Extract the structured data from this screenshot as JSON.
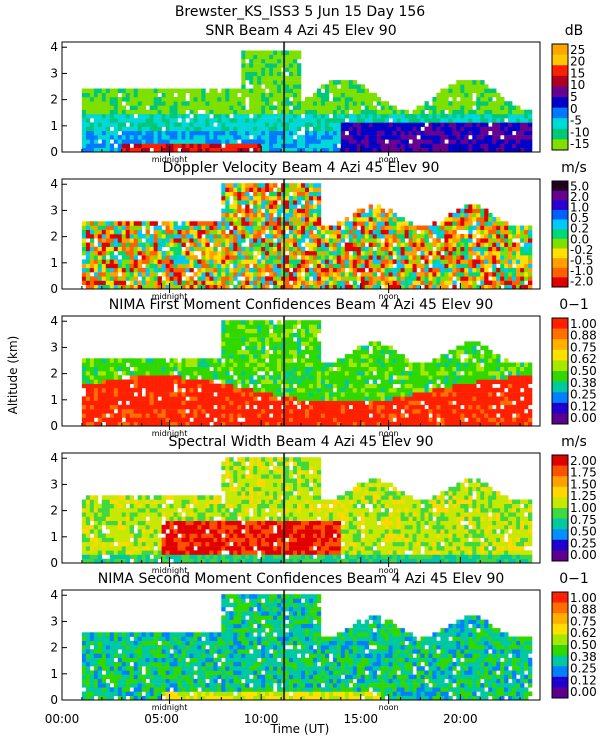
{
  "figure": {
    "title": "Brewster_KS_ISS3   5 Jun 15 Day 156",
    "ylabel": "Altitude (km)",
    "xlabel": "Time (UT)",
    "xticklabels": [
      "00:00",
      "05:00",
      "10:00",
      "15:00",
      "20:00"
    ],
    "midnight_label": "midnight",
    "noon_label": "noon"
  },
  "chart_data": [
    {
      "type": "heatmap",
      "title": "SNR Beam 4 Azi  45 Elev 90",
      "unit": "dB",
      "colorbar_ticks": [
        "25",
        "20",
        "15",
        "10",
        "5",
        "0",
        "-5",
        "-10",
        "-15"
      ],
      "colors": [
        "#ffa500",
        "#ffc800",
        "#ff2000",
        "#b00020",
        "#6a0090",
        "#0000c8",
        "#0078ff",
        "#00d8d8",
        "#00c878",
        "#7fe000"
      ],
      "yticks": [
        "0",
        "1",
        "2",
        "3",
        "4"
      ],
      "ylim": [
        0,
        4.2
      ],
      "xlim_hours": [
        0,
        24
      ]
    },
    {
      "type": "heatmap",
      "title": "Doppler Velocity Beam 4 Azi  45 Elev 90",
      "unit": "m/s",
      "colorbar_ticks": [
        "5.0",
        "2.0",
        "1.0",
        "0.5",
        "0.2",
        "0.0",
        "-0.2",
        "-0.5",
        "-1.0",
        "-2.0"
      ],
      "colors": [
        "#200020",
        "#6a0090",
        "#2a00d0",
        "#0060ff",
        "#00c8ff",
        "#00d878",
        "#7fe000",
        "#ffe000",
        "#ffa000",
        "#ff6000",
        "#e00000"
      ],
      "yticks": [
        "0",
        "1",
        "2",
        "3",
        "4"
      ],
      "ylim": [
        0,
        4.2
      ],
      "xlim_hours": [
        0,
        24
      ]
    },
    {
      "type": "heatmap",
      "title": "NIMA First Moment Confidences Beam 4 Azi  45 Elev 90",
      "unit": "0−1",
      "colorbar_ticks": [
        "1.00",
        "0.88",
        "0.75",
        "0.62",
        "0.50",
        "0.38",
        "0.25",
        "0.12",
        "0.00"
      ],
      "colors": [
        "#ff2000",
        "#ff7000",
        "#ffb000",
        "#ffe000",
        "#a8e800",
        "#30d800",
        "#00c8a0",
        "#0080ff",
        "#2000d0",
        "#5a0090"
      ],
      "yticks": [
        "0",
        "1",
        "2",
        "3",
        "4"
      ],
      "ylim": [
        0,
        4.2
      ],
      "xlim_hours": [
        0,
        24
      ]
    },
    {
      "type": "heatmap",
      "title": "Spectral Width Beam 4 Azi  45 Elev 90",
      "unit": "m/s",
      "colorbar_ticks": [
        "2.00",
        "1.75",
        "1.50",
        "1.25",
        "1.00",
        "0.75",
        "0.50",
        "0.25",
        "0.00"
      ],
      "colors": [
        "#e00000",
        "#ff5000",
        "#ffa000",
        "#ffd800",
        "#c8e800",
        "#40d840",
        "#00c8a0",
        "#0090ff",
        "#2000d0",
        "#5a0090"
      ],
      "yticks": [
        "0",
        "1",
        "2",
        "3",
        "4"
      ],
      "ylim": [
        0,
        4.2
      ],
      "xlim_hours": [
        0,
        24
      ]
    },
    {
      "type": "heatmap",
      "title": "NIMA Second Moment Confidences Beam 4 Azi  45 Elev 90",
      "unit": "0−1",
      "colorbar_ticks": [
        "1.00",
        "0.88",
        "0.75",
        "0.62",
        "0.50",
        "0.38",
        "0.25",
        "0.12",
        "0.00"
      ],
      "colors": [
        "#ff2000",
        "#ff7000",
        "#ffb000",
        "#ffe000",
        "#a8e800",
        "#30d800",
        "#00c8a0",
        "#0080ff",
        "#2000d0",
        "#5a0090"
      ],
      "yticks": [
        "0",
        "1",
        "2",
        "3",
        "4"
      ],
      "ylim": [
        0,
        4.2
      ],
      "xlim_hours": [
        0,
        24
      ]
    }
  ]
}
